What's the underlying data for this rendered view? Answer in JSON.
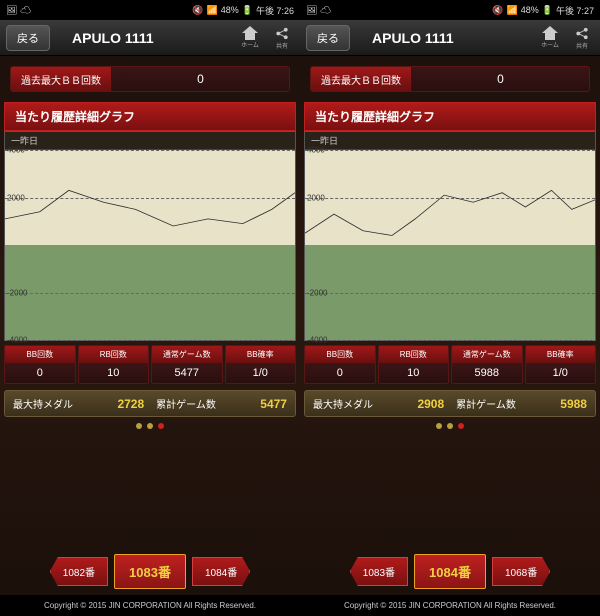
{
  "screens": [
    {
      "status": {
        "battery": "48%",
        "time": "午後 7:26"
      },
      "nav": {
        "back": "戻る",
        "title": "APULO 1111",
        "home_label": "ホーム",
        "share_label": "共有"
      },
      "bb": {
        "label": "過去最大ＢＢ回数",
        "value": "0"
      },
      "section_title": "当たり履歴詳細グラフ",
      "chart": {
        "header": "一昨日",
        "ylim": [
          -4000,
          4000
        ],
        "yticks": [
          4000,
          2000,
          0,
          -2000,
          -4000
        ],
        "bg_top": "#e8e2c8",
        "bg_bottom": "#7a9a6a",
        "grid_color": "#666666",
        "line_color": "#2a2a2a",
        "points": [
          [
            0,
            1100
          ],
          [
            12,
            1400
          ],
          [
            22,
            2300
          ],
          [
            34,
            1800
          ],
          [
            45,
            1500
          ],
          [
            58,
            800
          ],
          [
            70,
            1100
          ],
          [
            82,
            900
          ],
          [
            92,
            1500
          ],
          [
            100,
            2200
          ]
        ]
      },
      "stats": [
        {
          "head": "BB回数",
          "val": "0"
        },
        {
          "head": "RB回数",
          "val": "10"
        },
        {
          "head": "通常ゲーム数",
          "val": "5477"
        },
        {
          "head": "BB確率",
          "val": "1/0"
        }
      ],
      "summary": {
        "medal_label": "最大持メダル",
        "medal_val": "2728",
        "game_label": "累計ゲーム数",
        "game_val": "5477"
      },
      "dots": 3,
      "dot_active": 2,
      "machines": {
        "prev": "1082番",
        "current": "1083番",
        "next": "1084番"
      },
      "copyright": "Copyright © 2015 JIN CORPORATION All Rights Reserved."
    },
    {
      "status": {
        "battery": "48%",
        "time": "午後 7:27"
      },
      "nav": {
        "back": "戻る",
        "title": "APULO 1111",
        "home_label": "ホーム",
        "share_label": "共有"
      },
      "bb": {
        "label": "過去最大ＢＢ回数",
        "value": "0"
      },
      "section_title": "当たり履歴詳細グラフ",
      "chart": {
        "header": "一昨日",
        "ylim": [
          -4000,
          4000
        ],
        "yticks": [
          4000,
          2000,
          0,
          -2000,
          -4000
        ],
        "bg_top": "#e8e2c8",
        "bg_bottom": "#7a9a6a",
        "grid_color": "#666666",
        "line_color": "#2a2a2a",
        "points": [
          [
            0,
            500
          ],
          [
            10,
            1300
          ],
          [
            20,
            600
          ],
          [
            30,
            400
          ],
          [
            38,
            1100
          ],
          [
            48,
            2100
          ],
          [
            58,
            1800
          ],
          [
            68,
            2200
          ],
          [
            76,
            1600
          ],
          [
            85,
            2300
          ],
          [
            92,
            1500
          ],
          [
            100,
            1900
          ]
        ]
      },
      "stats": [
        {
          "head": "BB回数",
          "val": "0"
        },
        {
          "head": "RB回数",
          "val": "10"
        },
        {
          "head": "通常ゲーム数",
          "val": "5988"
        },
        {
          "head": "BB確率",
          "val": "1/0"
        }
      ],
      "summary": {
        "medal_label": "最大持メダル",
        "medal_val": "2908",
        "game_label": "累計ゲーム数",
        "game_val": "5988"
      },
      "dots": 3,
      "dot_active": 2,
      "machines": {
        "prev": "1083番",
        "current": "1084番",
        "next": "1068番"
      },
      "copyright": "Copyright © 2015 JIN CORPORATION All Rights Reserved."
    }
  ]
}
